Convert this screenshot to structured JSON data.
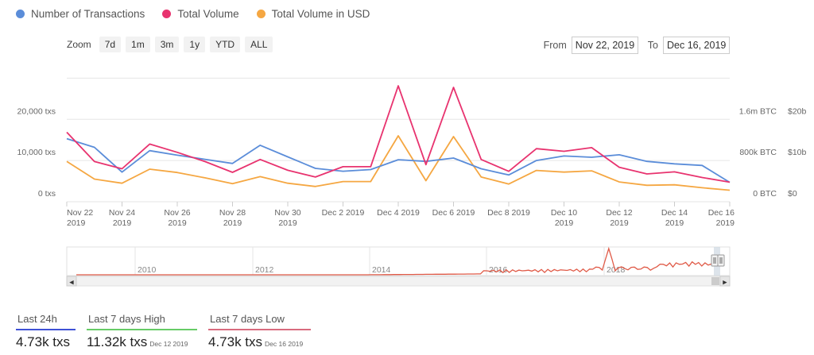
{
  "legend": [
    {
      "label": "Number of Transactions",
      "color": "#5b8dd9"
    },
    {
      "label": "Total Volume",
      "color": "#e8336f"
    },
    {
      "label": "Total Volume in USD",
      "color": "#f5a742"
    }
  ],
  "zoom": {
    "label": "Zoom",
    "buttons": [
      "7d",
      "1m",
      "3m",
      "1y",
      "YTD",
      "ALL"
    ]
  },
  "range": {
    "from_label": "From",
    "from_value": "Nov 22, 2019",
    "to_label": "To",
    "to_value": "Dec 16, 2019"
  },
  "chart_data": {
    "type": "line",
    "x_ticks": [
      {
        "l1": "Nov 22",
        "l2": "2019"
      },
      {
        "l1": "Nov 24",
        "l2": "2019"
      },
      {
        "l1": "Nov 26",
        "l2": "2019"
      },
      {
        "l1": "Nov 28",
        "l2": "2019"
      },
      {
        "l1": "Nov 30",
        "l2": "2019"
      },
      {
        "l1": "Dec 2 2019",
        "l2": ""
      },
      {
        "l1": "Dec 4 2019",
        "l2": ""
      },
      {
        "l1": "Dec 6 2019",
        "l2": ""
      },
      {
        "l1": "Dec 8 2019",
        "l2": ""
      },
      {
        "l1": "Dec 10",
        "l2": "2019"
      },
      {
        "l1": "Dec 12",
        "l2": "2019"
      },
      {
        "l1": "Dec 14",
        "l2": "2019"
      },
      {
        "l1": "Dec 16",
        "l2": "2019"
      }
    ],
    "left_axis": {
      "ticks": [
        "0 txs",
        "10,000 txs",
        "20,000 txs"
      ],
      "values": [
        0,
        10000,
        20000
      ],
      "ylim": [
        0,
        32000
      ]
    },
    "right_axis_btc": {
      "ticks": [
        "0 BTC",
        "800k BTC",
        "1.6m BTC"
      ],
      "values": [
        0,
        800000,
        1600000
      ],
      "ylim": [
        0,
        2560000
      ]
    },
    "right_axis_usd": {
      "ticks": [
        "$0",
        "$10b",
        "$20b"
      ],
      "values": [
        0,
        10,
        20
      ],
      "ylim": [
        0,
        32
      ]
    },
    "series": [
      {
        "name": "Number of Transactions",
        "axis": "left",
        "color": "#5b8dd9",
        "values": [
          15300,
          13200,
          7200,
          12400,
          11300,
          10300,
          9300,
          13700,
          10900,
          8100,
          7400,
          7800,
          10200,
          9800,
          10600,
          8000,
          6500,
          10000,
          11100,
          10800,
          11400,
          9800,
          9200,
          8800,
          4700
        ]
      },
      {
        "name": "Total Volume",
        "axis": "btc",
        "color": "#e8336f",
        "values": [
          1350000,
          780000,
          640000,
          1120000,
          960000,
          780000,
          570000,
          820000,
          610000,
          480000,
          680000,
          680000,
          2250000,
          720000,
          2220000,
          820000,
          590000,
          1030000,
          980000,
          1050000,
          670000,
          540000,
          580000,
          470000,
          380000
        ]
      },
      {
        "name": "Total Volume in USD",
        "axis": "usd",
        "color": "#f5a742",
        "values": [
          9.8,
          5.5,
          4.5,
          7.9,
          7.1,
          5.8,
          4.4,
          6.1,
          4.5,
          3.7,
          4.9,
          4.9,
          16.0,
          5.1,
          15.8,
          6.0,
          4.3,
          7.6,
          7.2,
          7.5,
          4.8,
          4.0,
          4.1,
          3.4,
          2.8
        ]
      }
    ]
  },
  "navigator": {
    "years": [
      "2010",
      "2012",
      "2014",
      "2016",
      "2018"
    ],
    "left_arrow": "◀",
    "right_arrow": "▶"
  },
  "stats": [
    {
      "title": "Last 24h",
      "value": "4.73k txs",
      "date": "",
      "color": "#3f51d6"
    },
    {
      "title": "Last 7 days High",
      "value": "11.32k txs",
      "date": "Dec 12 2019",
      "color": "#66cc66"
    },
    {
      "title": "Last 7 days Low",
      "value": "4.73k txs",
      "date": "Dec 16 2019",
      "color": "#d96b7e"
    }
  ]
}
